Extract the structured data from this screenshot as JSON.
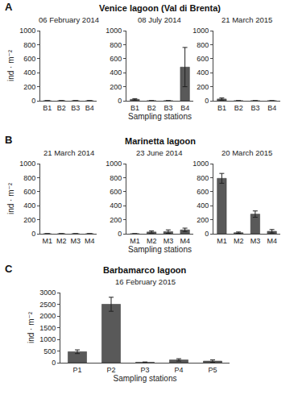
{
  "chart_data": [
    {
      "type": "bar",
      "annotations": [
        "A",
        "Venice lagoon (Val di Brenta)"
      ],
      "title": "06 February 2014",
      "categories": [
        "B1",
        "B2",
        "B3",
        "B4"
      ],
      "values": [
        0,
        0,
        0,
        0
      ],
      "error": [
        0,
        0,
        0,
        0
      ],
      "color": "#595959",
      "ylabel": "ind · m⁻²",
      "ylim": [
        0,
        1000
      ],
      "yticks": [
        0,
        200,
        400,
        600,
        800,
        1000
      ]
    },
    {
      "type": "bar",
      "title": "08 July 2014",
      "categories": [
        "B1",
        "B2",
        "B3",
        "B4"
      ],
      "values": [
        20,
        0,
        0,
        480
      ],
      "error": [
        10,
        0,
        0,
        280
      ],
      "color": "#595959",
      "xlabel": "Sampling stations",
      "ylim": [
        0,
        1000
      ],
      "yticks": [
        0,
        200,
        400,
        600,
        800,
        1000
      ]
    },
    {
      "type": "bar",
      "title": "21 March 2015",
      "categories": [
        "B1",
        "B2",
        "B3",
        "B4"
      ],
      "values": [
        25,
        0,
        0,
        0
      ],
      "error": [
        15,
        0,
        0,
        0
      ],
      "color": "#595959",
      "ylim": [
        0,
        1000
      ],
      "yticks": [
        0,
        200,
        400,
        600,
        800,
        1000
      ]
    },
    {
      "type": "bar",
      "annotations": [
        "B",
        "Marinetta lagoon"
      ],
      "title": "21 March 2014",
      "categories": [
        "M1",
        "M2",
        "M3",
        "M4"
      ],
      "values": [
        0,
        0,
        0,
        0
      ],
      "error": [
        0,
        0,
        0,
        0
      ],
      "color": "#595959",
      "ylabel": "ind · m⁻²",
      "ylim": [
        0,
        1000
      ],
      "yticks": [
        0,
        200,
        400,
        600,
        800,
        1000
      ]
    },
    {
      "type": "bar",
      "title": "23 June 2014",
      "categories": [
        "M1",
        "M2",
        "M3",
        "M4"
      ],
      "values": [
        0,
        25,
        30,
        55
      ],
      "error": [
        0,
        15,
        25,
        25
      ],
      "color": "#595959",
      "xlabel": "Sampling stations",
      "ylim": [
        0,
        1000
      ],
      "yticks": [
        0,
        200,
        400,
        600,
        800,
        1000
      ]
    },
    {
      "type": "bar",
      "title": "20 March 2015",
      "categories": [
        "M1",
        "M2",
        "M3",
        "M4"
      ],
      "values": [
        790,
        15,
        280,
        35
      ],
      "error": [
        70,
        10,
        45,
        25
      ],
      "color": "#595959",
      "ylim": [
        0,
        1000
      ],
      "yticks": [
        0,
        200,
        400,
        600,
        800,
        1000
      ]
    },
    {
      "type": "bar",
      "annotations": [
        "C",
        "Barbamarco lagoon"
      ],
      "title": "16 February 2015",
      "categories": [
        "P1",
        "P2",
        "P3",
        "P4",
        "P5"
      ],
      "values": [
        470,
        2500,
        20,
        120,
        70
      ],
      "error": [
        80,
        300,
        10,
        50,
        50
      ],
      "color": "#595959",
      "xlabel": "Sampling stations",
      "ylabel": "ind · m⁻²",
      "ylim": [
        0,
        3000
      ],
      "yticks": [
        0,
        500,
        1000,
        1500,
        2000,
        2500,
        3000
      ]
    }
  ]
}
